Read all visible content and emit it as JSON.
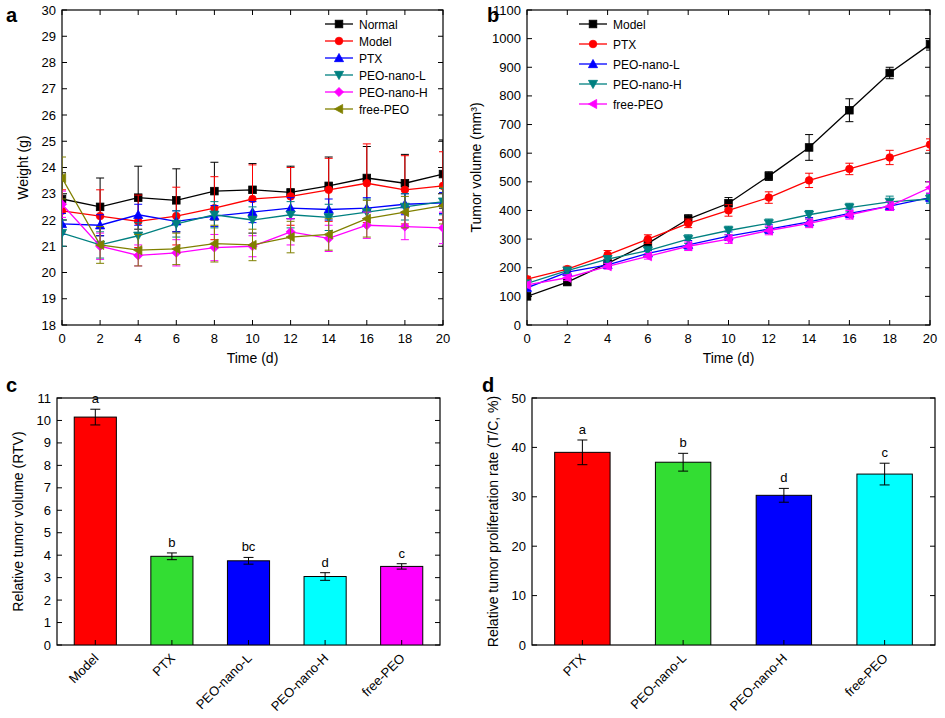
{
  "chart_data": [
    {
      "type": "line",
      "title": "a",
      "x_label": "Time (d)",
      "y_label": "Weight (g)",
      "x": [
        0,
        2,
        4,
        6,
        8,
        10,
        12,
        14,
        16,
        18,
        20
      ],
      "xlim": [
        0,
        20
      ],
      "xticks": [
        0,
        2,
        4,
        6,
        8,
        10,
        12,
        14,
        16,
        18,
        20
      ],
      "ylim": [
        18,
        30
      ],
      "yticks": [
        18,
        19,
        20,
        21,
        22,
        23,
        24,
        25,
        26,
        27,
        28,
        29,
        30
      ],
      "grid": false,
      "legend": "upper right",
      "series": [
        {
          "name": "Normal",
          "color": "#000000",
          "marker": "square",
          "values": [
            22.8,
            22.5,
            22.85,
            22.75,
            23.1,
            23.15,
            23.05,
            23.3,
            23.6,
            23.4,
            23.75
          ],
          "errors": [
            1.0,
            1.1,
            1.2,
            1.2,
            1.1,
            1.0,
            1.0,
            1.1,
            1.2,
            1.1,
            1.3
          ]
        },
        {
          "name": "Model",
          "color": "#ff0000",
          "marker": "circle",
          "values": [
            22.35,
            22.15,
            21.95,
            22.15,
            22.45,
            22.8,
            22.9,
            23.15,
            23.4,
            23.15,
            23.3
          ],
          "errors": [
            0.8,
            1.0,
            1.0,
            1.1,
            1.2,
            1.3,
            1.1,
            1.2,
            1.5,
            1.3,
            1.3
          ]
        },
        {
          "name": "PTX",
          "color": "#0000ff",
          "marker": "triangle-up",
          "values": [
            21.85,
            21.8,
            22.2,
            21.95,
            22.15,
            22.3,
            22.45,
            22.4,
            22.45,
            22.6,
            22.65
          ],
          "errors": [
            0.4,
            0.4,
            0.4,
            0.4,
            0.4,
            0.4,
            0.4,
            0.4,
            0.4,
            0.4,
            0.4
          ]
        },
        {
          "name": "PEO-nano-L",
          "color": "#008080",
          "marker": "triangle-down",
          "values": [
            21.5,
            21.05,
            21.4,
            21.85,
            22.2,
            22.0,
            22.2,
            22.1,
            22.3,
            22.5,
            22.7
          ],
          "errors": [
            0.5,
            0.5,
            0.5,
            0.5,
            0.5,
            0.5,
            0.5,
            0.5,
            0.5,
            0.5,
            0.5
          ]
        },
        {
          "name": "PEO-nano-H",
          "color": "#ff00ff",
          "marker": "diamond",
          "values": [
            22.6,
            21.0,
            20.65,
            20.75,
            20.95,
            21.0,
            21.55,
            21.3,
            21.8,
            21.75,
            21.7
          ],
          "errors": [
            0.5,
            0.5,
            0.4,
            0.5,
            0.5,
            0.4,
            0.5,
            0.5,
            0.5,
            0.5,
            0.6
          ]
        },
        {
          "name": "free-PEO",
          "color": "#808000",
          "marker": "triangle-left",
          "values": [
            23.6,
            21.05,
            20.85,
            20.9,
            21.1,
            21.05,
            21.35,
            21.45,
            22.05,
            22.3,
            22.55
          ],
          "errors": [
            0.8,
            0.7,
            0.6,
            0.6,
            0.7,
            0.6,
            0.6,
            0.6,
            0.7,
            0.6,
            0.7
          ]
        }
      ]
    },
    {
      "type": "line",
      "title": "b",
      "x_label": "Time (d)",
      "y_label": "Tumor volume (mm³)",
      "x": [
        0,
        2,
        4,
        6,
        8,
        10,
        12,
        14,
        16,
        18,
        20
      ],
      "xlim": [
        0,
        20
      ],
      "xticks": [
        0,
        2,
        4,
        6,
        8,
        10,
        12,
        14,
        16,
        18,
        20
      ],
      "ylim": [
        0,
        1100
      ],
      "yticks": [
        0,
        100,
        200,
        300,
        400,
        500,
        600,
        700,
        800,
        900,
        1000,
        1100
      ],
      "grid": false,
      "legend": "upper left",
      "series": [
        {
          "name": "Model",
          "color": "#000000",
          "marker": "square",
          "values": [
            100,
            150,
            215,
            285,
            370,
            425,
            520,
            620,
            750,
            880,
            980
          ],
          "errors": [
            10,
            10,
            10,
            15,
            15,
            20,
            15,
            45,
            40,
            20,
            20
          ]
        },
        {
          "name": "PTX",
          "color": "#ff0000",
          "marker": "circle",
          "values": [
            160,
            195,
            245,
            300,
            355,
            400,
            445,
            505,
            545,
            585,
            630
          ],
          "errors": [
            10,
            10,
            15,
            15,
            15,
            20,
            20,
            25,
            20,
            25,
            20
          ]
        },
        {
          "name": "PEO-nano-L",
          "color": "#0000ff",
          "marker": "triangle-up",
          "values": [
            130,
            185,
            210,
            250,
            280,
            310,
            335,
            360,
            390,
            415,
            445
          ],
          "errors": [
            10,
            10,
            10,
            10,
            15,
            15,
            15,
            15,
            15,
            15,
            15
          ]
        },
        {
          "name": "PEO-nano-H",
          "color": "#008080",
          "marker": "triangle-down",
          "values": [
            145,
            190,
            230,
            260,
            300,
            330,
            355,
            385,
            410,
            430,
            440
          ],
          "errors": [
            10,
            10,
            10,
            15,
            15,
            15,
            15,
            15,
            15,
            20,
            15
          ]
        },
        {
          "name": "free-PEO",
          "color": "#ff00ff",
          "marker": "triangle-left",
          "values": [
            140,
            165,
            205,
            240,
            275,
            300,
            330,
            355,
            385,
            415,
            480
          ],
          "errors": [
            10,
            10,
            10,
            10,
            15,
            15,
            15,
            15,
            15,
            15,
            20
          ]
        }
      ]
    },
    {
      "type": "bar",
      "title": "c",
      "y_label": "Relative tumor volume (RTV)",
      "categories": [
        "Model",
        "PTX",
        "PEO-nano-L",
        "PEO-nano-H",
        "free-PEO"
      ],
      "values": [
        10.15,
        3.95,
        3.75,
        3.05,
        3.5
      ],
      "errors": [
        0.35,
        0.15,
        0.15,
        0.17,
        0.12
      ],
      "annotations": [
        "a",
        "b",
        "bc",
        "d",
        "c"
      ],
      "colors": [
        "#ff0000",
        "#33dd33",
        "#0000ff",
        "#00ffff",
        "#ff00ff"
      ],
      "ylim": [
        0,
        11
      ],
      "yticks": [
        0,
        1,
        2,
        3,
        4,
        5,
        6,
        7,
        8,
        9,
        10,
        11
      ],
      "grid": false
    },
    {
      "type": "bar",
      "title": "d",
      "y_label": "Relative tumor proliferation rate (T/C, %)",
      "categories": [
        "PTX",
        "PEO-nano-L",
        "PEO-nano-H",
        "free-PEO"
      ],
      "values": [
        39,
        37,
        30.3,
        34.6
      ],
      "errors": [
        2.5,
        1.8,
        1.4,
        2.2
      ],
      "annotations": [
        "a",
        "b",
        "d",
        "c"
      ],
      "colors": [
        "#ff0000",
        "#33dd33",
        "#0000ff",
        "#00ffff"
      ],
      "ylim": [
        0,
        50
      ],
      "yticks": [
        0,
        10,
        20,
        30,
        40,
        50
      ],
      "grid": false
    }
  ]
}
